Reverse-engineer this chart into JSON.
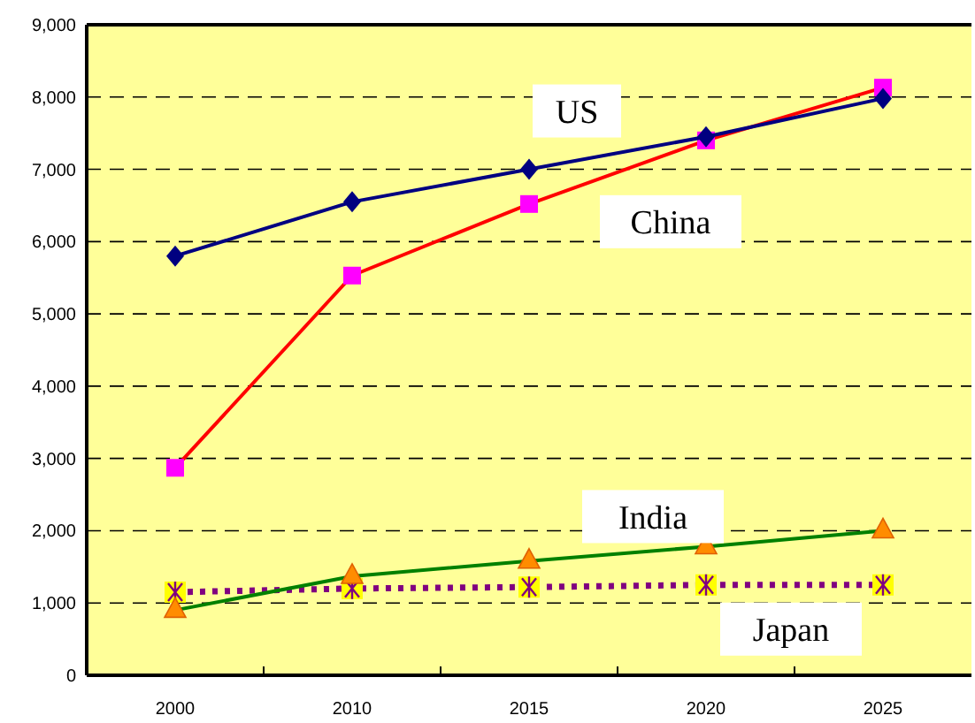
{
  "chart_data": {
    "type": "line",
    "categories": [
      "2000",
      "2010",
      "2015",
      "2020",
      "2025"
    ],
    "ylim": [
      0,
      9000
    ],
    "yticks": [
      {
        "value": 0,
        "label": "0"
      },
      {
        "value": 1000,
        "label": "1,000"
      },
      {
        "value": 2000,
        "label": "2,000"
      },
      {
        "value": 3000,
        "label": "3,000"
      },
      {
        "value": 4000,
        "label": "4,000"
      },
      {
        "value": 5000,
        "label": "5,000"
      },
      {
        "value": 6000,
        "label": "6,000"
      },
      {
        "value": 7000,
        "label": "7,000"
      },
      {
        "value": 8000,
        "label": "8,000"
      },
      {
        "value": 9000,
        "label": "9,000"
      }
    ],
    "grid": "y",
    "legend": false,
    "series": [
      {
        "name": "US",
        "color": "#000080",
        "marker": "diamond",
        "line_style": "solid",
        "values": [
          5800,
          6550,
          7000,
          7450,
          7980
        ]
      },
      {
        "name": "China",
        "color": "#ff0000",
        "marker": "square",
        "line_style": "solid",
        "values": [
          2870,
          5530,
          6520,
          7400,
          8130
        ]
      },
      {
        "name": "India",
        "color": "#008000",
        "marker": "triangle",
        "line_style": "solid",
        "values": [
          900,
          1370,
          1580,
          1780,
          2000
        ]
      },
      {
        "name": "Japan",
        "color": "#800080",
        "marker": "cross",
        "line_style": "dotted",
        "values": [
          1150,
          1200,
          1220,
          1250,
          1250
        ]
      }
    ]
  }
}
